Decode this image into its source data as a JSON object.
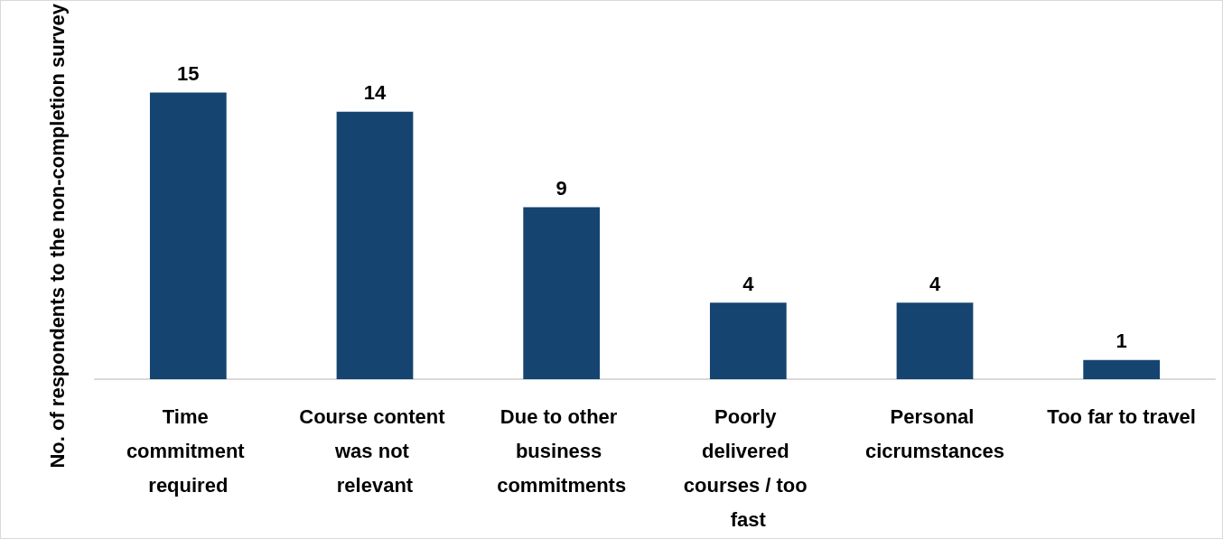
{
  "chart_data": {
    "type": "bar",
    "ylabel": "No. of respondents to the non-completion survey",
    "categories": [
      "Time commitment required",
      "Course content was not relevant",
      "Due to other business commitments",
      "Poorly delivered courses / too fast",
      "Personal cicrumstances",
      "Too far to travel"
    ],
    "values": [
      15,
      14,
      9,
      4,
      4,
      1
    ],
    "color": "#154470",
    "data_labels": true
  }
}
